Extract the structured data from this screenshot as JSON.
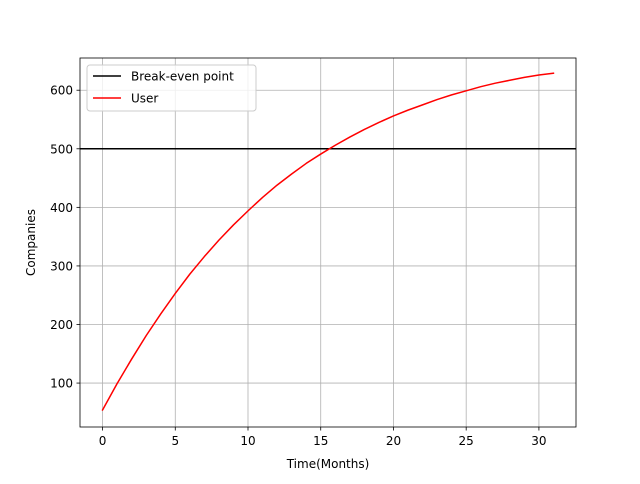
{
  "chart_data": {
    "type": "line",
    "xlabel": "Time(Months)",
    "ylabel": "Companies",
    "xlim": [
      -1.55,
      32.55
    ],
    "ylim": [
      25,
      655
    ],
    "xticks": [
      0,
      5,
      10,
      15,
      20,
      25,
      30
    ],
    "yticks": [
      100,
      200,
      300,
      400,
      500,
      600
    ],
    "grid": true,
    "legend_position": "top-left",
    "series": [
      {
        "name": "Break-even point",
        "color": "#000000",
        "kind": "horizontal-line",
        "y": 500
      },
      {
        "name": "User",
        "color": "#ff0000",
        "kind": "line",
        "x": [
          0,
          1,
          2,
          3,
          4,
          5,
          6,
          7,
          8,
          9,
          10,
          11,
          12,
          13,
          14,
          15,
          16,
          17,
          18,
          19,
          20,
          21,
          22,
          23,
          24,
          25,
          26,
          27,
          28,
          29,
          30,
          31
        ],
        "y": [
          54,
          99,
          141,
          181,
          218,
          253,
          286,
          316,
          344,
          370,
          394,
          417,
          438,
          457,
          475,
          491,
          506,
          520,
          533,
          545,
          556,
          566,
          575,
          584,
          592,
          599,
          606,
          612,
          617,
          622,
          626,
          629
        ]
      }
    ]
  }
}
